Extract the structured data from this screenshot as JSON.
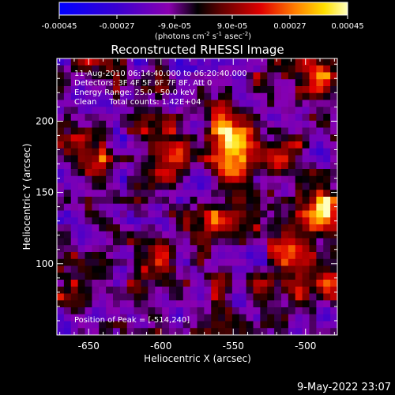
{
  "chart_data": {
    "type": "heatmap",
    "title": "Reconstructed RHESSI Image",
    "xlabel": "Heliocentric X (arcsec)",
    "ylabel": "Heliocentric Y (arcsec)",
    "xlim": [
      -672,
      -478
    ],
    "ylim": [
      50,
      244
    ],
    "x_ticks": [
      -650,
      -600,
      -550,
      -500
    ],
    "y_ticks": [
      100,
      150,
      200
    ],
    "colorbar": {
      "ticks": [
        "-0.00045",
        "-0.00027",
        "-9.0e-05",
        "9.0e-05",
        "0.00027",
        "0.00045"
      ],
      "tick_values": [
        -0.00045,
        -0.00027,
        -9e-05,
        9e-05,
        0.00027,
        0.00045
      ],
      "unit_label_parts": [
        "(photons cm",
        "-2",
        " s",
        "-1",
        " asec",
        "-2",
        ")"
      ],
      "range": [
        -0.00045,
        0.00045
      ]
    },
    "annotations": [
      "11-Aug-2010 06:14:40.000 to 06:20:40.000",
      "Detectors: 3F 4F 5F 6F 7F 8F, Att 0",
      "Energy Range: 25.0 - 50.0 keV",
      "Clean     Total counts: 1.42E+04",
      "Position of Peak = [-514,240]"
    ],
    "peak_position": [
      -514,
      240
    ],
    "total_counts": 14200,
    "energy_range_kev": [
      25.0,
      50.0
    ],
    "grid": false
  },
  "footer": {
    "timestamp": "9-May-2022 23:07"
  }
}
